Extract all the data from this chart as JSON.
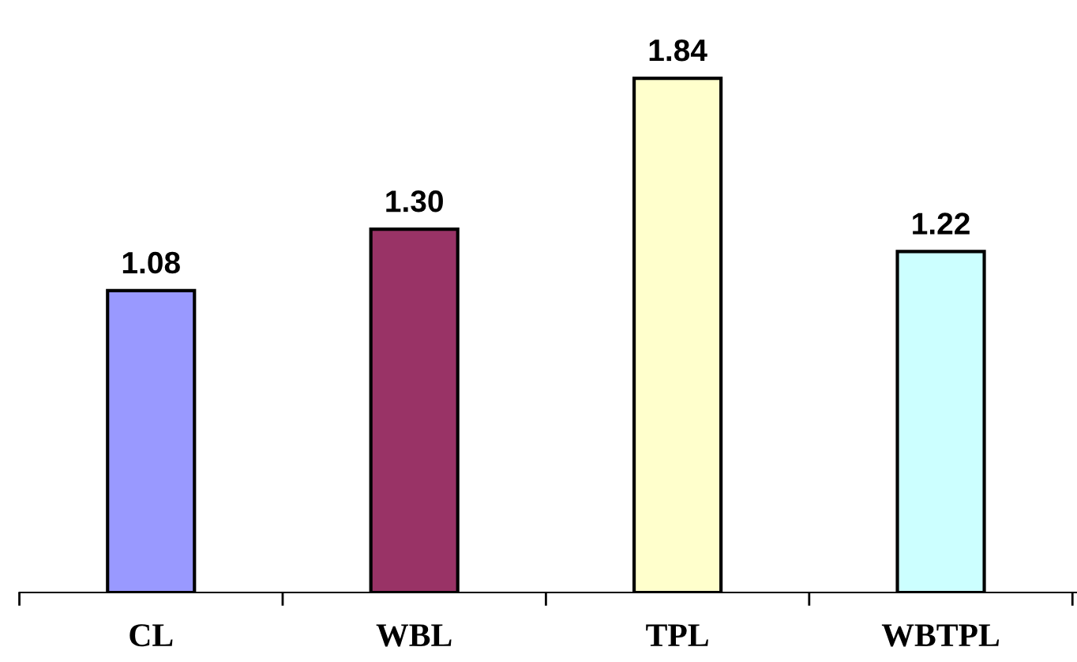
{
  "chart_data": {
    "type": "bar",
    "categories": [
      "CL",
      "WBL",
      "TPL",
      "WBTPL"
    ],
    "values": [
      1.08,
      1.3,
      1.84,
      1.22
    ],
    "colors": [
      "#9999ff",
      "#993366",
      "#ffffcc",
      "#ccffff"
    ],
    "value_labels": [
      "1.08",
      "1.30",
      "1.84",
      "1.22"
    ],
    "tick_labels": "x",
    "grid": false,
    "legend": false
  }
}
